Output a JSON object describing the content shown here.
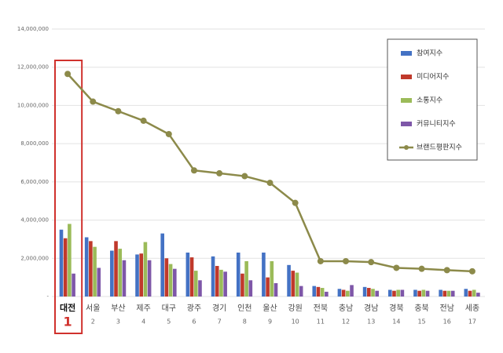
{
  "chart_data": {
    "type": "bar",
    "categories": [
      "대전",
      "서울",
      "부산",
      "제주",
      "대구",
      "광주",
      "경기",
      "인천",
      "울산",
      "강원",
      "전북",
      "충남",
      "경남",
      "경북",
      "충북",
      "전남",
      "세종"
    ],
    "ranks": [
      "1",
      "2",
      "3",
      "4",
      "5",
      "6",
      "7",
      "8",
      "9",
      "10",
      "11",
      "12",
      "13",
      "14",
      "15",
      "16",
      "17"
    ],
    "series": [
      {
        "name": "참여지수",
        "color": "#4472c4",
        "values": [
          3500000,
          3100000,
          2400000,
          2200000,
          3300000,
          2300000,
          2100000,
          2300000,
          2300000,
          1650000,
          550000,
          400000,
          500000,
          350000,
          350000,
          350000,
          400000
        ]
      },
      {
        "name": "미디어지수",
        "color": "#c0392b",
        "values": [
          3050000,
          2900000,
          2900000,
          2250000,
          2000000,
          2050000,
          1600000,
          1200000,
          1000000,
          1350000,
          500000,
          350000,
          450000,
          300000,
          300000,
          300000,
          300000
        ]
      },
      {
        "name": "소통지수",
        "color": "#9bbb59",
        "values": [
          3800000,
          2600000,
          2500000,
          2850000,
          1700000,
          1350000,
          1400000,
          1850000,
          1850000,
          1250000,
          450000,
          300000,
          400000,
          350000,
          350000,
          300000,
          350000
        ]
      },
      {
        "name": "커뮤니티지수",
        "color": "#7e57a8",
        "values": [
          1200000,
          1500000,
          1900000,
          1900000,
          1450000,
          850000,
          1300000,
          850000,
          700000,
          550000,
          250000,
          600000,
          300000,
          350000,
          300000,
          300000,
          200000
        ]
      },
      {
        "name": "브랜드평판지수",
        "type": "line",
        "color": "#8c8a4a",
        "values": [
          11650000,
          10200000,
          9700000,
          9200000,
          8500000,
          6600000,
          6450000,
          6300000,
          5950000,
          4900000,
          1850000,
          1850000,
          1800000,
          1500000,
          1450000,
          1380000,
          1320000
        ]
      }
    ],
    "ylim": [
      0,
      14000000
    ],
    "yticks": [
      {
        "value": 0,
        "label": "-"
      },
      {
        "value": 2000000,
        "label": "2,000,000"
      },
      {
        "value": 4000000,
        "label": "4,000,000"
      },
      {
        "value": 6000000,
        "label": "6,000,000"
      },
      {
        "value": 8000000,
        "label": "8,000,000"
      },
      {
        "value": 10000000,
        "label": "10,000,000"
      },
      {
        "value": 12000000,
        "label": "12,000,000"
      },
      {
        "value": 14000000,
        "label": "14,000,000"
      }
    ],
    "grid": true
  }
}
